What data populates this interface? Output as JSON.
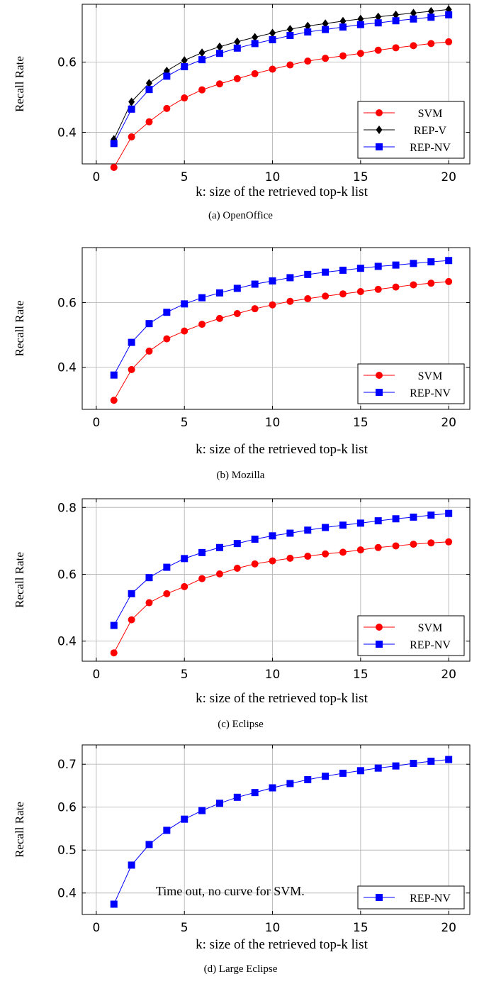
{
  "chart_data": [
    {
      "type": "line",
      "caption": "(a) OpenOffice",
      "xlabel": "k: size of the retrieved top-k list",
      "ylabel": "Recall Rate",
      "xlim": [
        -0.8,
        21.2
      ],
      "ylim": [
        0.31,
        0.765
      ],
      "xticks": [
        "0",
        "5",
        "10",
        "15",
        "20"
      ],
      "yticks": [
        "0.4",
        "0.6"
      ],
      "grid": true,
      "legend_position": "bottom-right",
      "x": [
        1,
        2,
        3,
        4,
        5,
        6,
        7,
        8,
        9,
        10,
        11,
        12,
        13,
        14,
        15,
        16,
        17,
        18,
        19,
        20
      ],
      "series": [
        {
          "name": "SVM",
          "color": "#ff0000",
          "marker": "circle",
          "values": [
            0.3,
            0.387,
            0.43,
            0.468,
            0.498,
            0.521,
            0.538,
            0.553,
            0.567,
            0.58,
            0.592,
            0.603,
            0.611,
            0.618,
            0.625,
            0.634,
            0.641,
            0.647,
            0.653,
            0.658
          ]
        },
        {
          "name": "REP-V",
          "color": "#000000",
          "marker": "diamond",
          "values": [
            0.38,
            0.487,
            0.54,
            0.575,
            0.605,
            0.627,
            0.644,
            0.658,
            0.671,
            0.683,
            0.694,
            0.703,
            0.71,
            0.717,
            0.723,
            0.729,
            0.735,
            0.74,
            0.745,
            0.75
          ]
        },
        {
          "name": "REP-NV",
          "color": "#0000ff",
          "marker": "square",
          "values": [
            0.368,
            0.466,
            0.522,
            0.56,
            0.587,
            0.607,
            0.625,
            0.64,
            0.653,
            0.664,
            0.676,
            0.686,
            0.693,
            0.7,
            0.707,
            0.712,
            0.718,
            0.723,
            0.728,
            0.735
          ]
        }
      ]
    },
    {
      "type": "line",
      "caption": "(b) Mozilla",
      "xlabel": "k: size of the retrieved top-k list",
      "ylabel": "Recall Rate",
      "xlim": [
        -0.8,
        21.2
      ],
      "ylim": [
        0.27,
        0.77
      ],
      "xticks": [
        "0",
        "5",
        "10",
        "15",
        "20"
      ],
      "yticks": [
        "0.4",
        "0.6"
      ],
      "grid": true,
      "legend_position": "bottom-right",
      "x": [
        1,
        2,
        3,
        4,
        5,
        6,
        7,
        8,
        9,
        10,
        11,
        12,
        13,
        14,
        15,
        16,
        17,
        18,
        19,
        20
      ],
      "series": [
        {
          "name": "SVM",
          "color": "#ff0000",
          "marker": "circle",
          "values": [
            0.298,
            0.393,
            0.45,
            0.488,
            0.512,
            0.533,
            0.551,
            0.566,
            0.581,
            0.593,
            0.604,
            0.612,
            0.62,
            0.627,
            0.634,
            0.641,
            0.648,
            0.655,
            0.66,
            0.665
          ]
        },
        {
          "name": "REP-NV",
          "color": "#0000ff",
          "marker": "square",
          "values": [
            0.376,
            0.477,
            0.535,
            0.57,
            0.596,
            0.615,
            0.63,
            0.644,
            0.657,
            0.667,
            0.677,
            0.687,
            0.694,
            0.7,
            0.706,
            0.712,
            0.716,
            0.721,
            0.726,
            0.73
          ]
        }
      ]
    },
    {
      "type": "line",
      "caption": "(c) Eclipse",
      "xlabel": "k: size of the retrieved top-k list",
      "ylabel": "Recall Rate",
      "xlim": [
        -0.8,
        21.2
      ],
      "ylim": [
        0.34,
        0.826
      ],
      "xticks": [
        "0",
        "5",
        "10",
        "15",
        "20"
      ],
      "yticks": [
        "0.4",
        "0.6",
        "0.8"
      ],
      "grid": true,
      "legend_position": "bottom-right",
      "x": [
        1,
        2,
        3,
        4,
        5,
        6,
        7,
        8,
        9,
        10,
        11,
        12,
        13,
        14,
        15,
        16,
        17,
        18,
        19,
        20
      ],
      "series": [
        {
          "name": "SVM",
          "color": "#ff0000",
          "marker": "circle",
          "values": [
            0.365,
            0.464,
            0.515,
            0.542,
            0.563,
            0.587,
            0.601,
            0.618,
            0.631,
            0.64,
            0.648,
            0.654,
            0.661,
            0.666,
            0.673,
            0.68,
            0.685,
            0.69,
            0.694,
            0.697
          ]
        },
        {
          "name": "REP-NV",
          "color": "#0000ff",
          "marker": "square",
          "values": [
            0.447,
            0.542,
            0.59,
            0.621,
            0.647,
            0.665,
            0.68,
            0.692,
            0.705,
            0.715,
            0.723,
            0.732,
            0.74,
            0.747,
            0.753,
            0.76,
            0.766,
            0.771,
            0.777,
            0.782
          ]
        }
      ]
    },
    {
      "type": "line",
      "caption": "(d) Large Eclipse",
      "xlabel": "k: size of the retrieved top-k list",
      "ylabel": "Recall Rate",
      "xlim": [
        -0.8,
        21.2
      ],
      "ylim": [
        0.35,
        0.745
      ],
      "xticks": [
        "0",
        "5",
        "10",
        "15",
        "20"
      ],
      "yticks": [
        "0.4",
        "0.5",
        "0.6",
        "0.7"
      ],
      "grid": true,
      "legend_position": "bottom-right",
      "annotation": "Time out, no curve for SVM.",
      "x": [
        1,
        2,
        3,
        4,
        5,
        6,
        7,
        8,
        9,
        10,
        11,
        12,
        13,
        14,
        15,
        16,
        17,
        18,
        19,
        20
      ],
      "series": [
        {
          "name": "REP-NV",
          "color": "#0000ff",
          "marker": "square",
          "values": [
            0.374,
            0.465,
            0.513,
            0.546,
            0.572,
            0.592,
            0.609,
            0.623,
            0.634,
            0.645,
            0.655,
            0.664,
            0.672,
            0.679,
            0.685,
            0.691,
            0.696,
            0.702,
            0.707,
            0.711
          ]
        }
      ]
    }
  ]
}
